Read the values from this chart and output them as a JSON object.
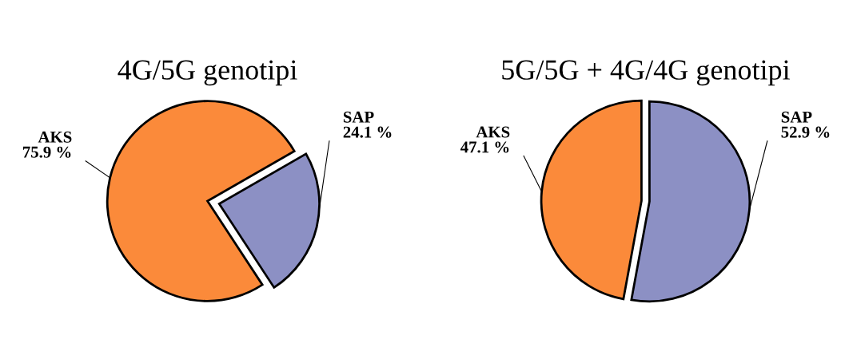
{
  "chart_data": [
    {
      "type": "pie",
      "title": "4G/5G genotipi",
      "categories": [
        "AKS",
        "SAP"
      ],
      "values": [
        75.9,
        24.1
      ],
      "colors": [
        "#fb8a3a",
        "#8c90c4"
      ],
      "value_labels": [
        "75.9 %",
        "24.1 %"
      ]
    },
    {
      "type": "pie",
      "title": "5G/5G + 4G/4G genotipi",
      "categories": [
        "AKS",
        "SAP"
      ],
      "values": [
        47.1,
        52.9
      ],
      "colors": [
        "#fb8a3a",
        "#8c90c4"
      ],
      "value_labels": [
        "47.1 %",
        "52.9 %"
      ]
    }
  ]
}
